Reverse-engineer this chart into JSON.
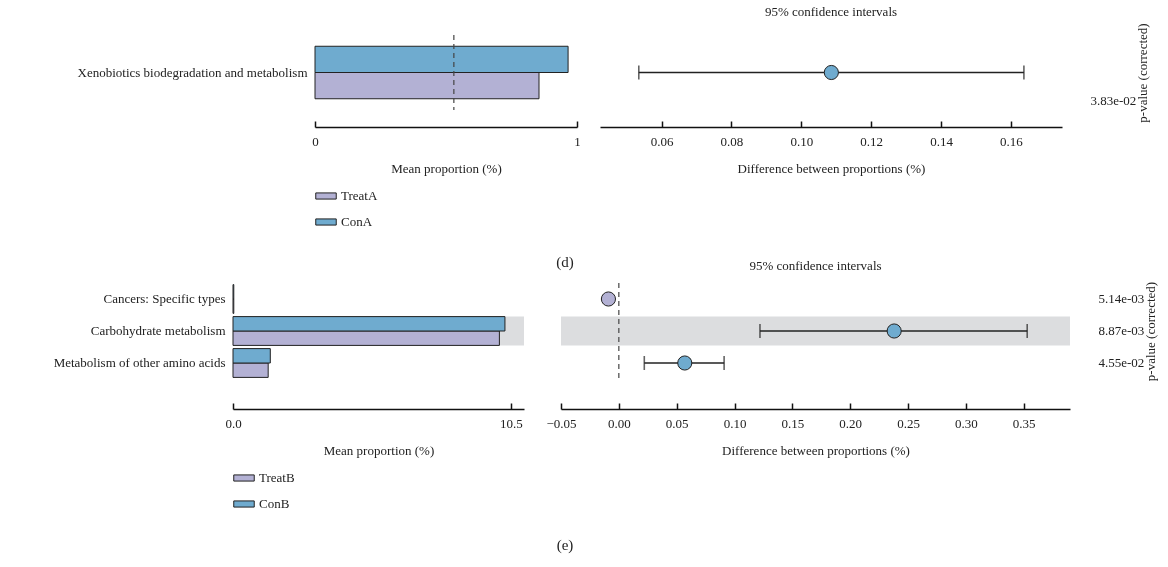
{
  "chart_data": [
    {
      "type": "bar",
      "orientation": "horizontal",
      "categories": [
        "Xenobiotics biodegradation and metabolism"
      ],
      "series": [
        {
          "name": "TreatA",
          "color": "#b3b1d4",
          "values": [
            0.855
          ]
        },
        {
          "name": "ConA",
          "color": "#6fabcf",
          "values": [
            0.966
          ]
        }
      ],
      "xlim": [
        0,
        1
      ],
      "xticks": [
        0,
        1
      ],
      "xlabel": "Mean proportion (%)",
      "legend": "bottom",
      "ref_lines": [
        {
          "axis": "x",
          "value": 0.53,
          "line_style": "dashed"
        }
      ],
      "annotations": [
        "(d)"
      ]
    },
    {
      "type": "scatter",
      "orientation": "horizontal",
      "title": "95% confidence intervals",
      "categories": [
        "3.83e-02"
      ],
      "ylabel": "p-value (corrected)",
      "values": [
        0.1086
      ],
      "errors": [
        [
          0.0535,
          0.1637
        ]
      ],
      "colors": [
        "#6fabcf"
      ],
      "xlim": [
        0.0424,
        0.1746
      ],
      "xticks": [
        0.06,
        0.08,
        {
          "value": 0.1,
          "label": "0.10"
        },
        0.12,
        0.14,
        0.16
      ],
      "xlabel": "Difference between proportions (%)"
    },
    {
      "type": "bar",
      "orientation": "horizontal",
      "categories": [
        "Cancers: Specific types",
        "Carbohydrate metabolism",
        "Metabolism of other amino acids"
      ],
      "series": [
        {
          "name": "TreatB",
          "color": "#b3b1d4",
          "values": [
            0.03,
            10.07,
            1.33
          ]
        },
        {
          "name": "ConB",
          "color": "#6fabcf",
          "values": [
            0.03,
            10.28,
            1.41
          ]
        }
      ],
      "xlim": [
        0,
        11
      ],
      "xticks": [
        {
          "value": 0,
          "label": "0.0"
        },
        10.5
      ],
      "xlabel": "Mean proportion (%)",
      "legend": "bottom",
      "bands": [
        {
          "axis": "y",
          "from": "Carbohydrate metabolism",
          "to": "Carbohydrate metabolism",
          "color": "#dcdddf"
        }
      ],
      "annotations": [
        "(e)"
      ]
    },
    {
      "type": "scatter",
      "orientation": "horizontal",
      "title": "95% confidence intervals",
      "categories": [
        "5.14e-03",
        "8.87e-03",
        "4.55e-02"
      ],
      "ylabel": "p-value (corrected)",
      "values": [
        -0.009,
        0.238,
        0.057
      ],
      "errors": [
        null,
        [
          0.122,
          0.353
        ],
        [
          0.022,
          0.091
        ]
      ],
      "colors": [
        "#b3b1d4",
        "#6fabcf",
        "#6fabcf"
      ],
      "xlim": [
        -0.05,
        0.39
      ],
      "xticks": [
        {
          "value": -0.05,
          "label": "−0.05"
        },
        {
          "value": 0,
          "label": "0.00"
        },
        0.05,
        {
          "value": 0.1,
          "label": "0.10"
        },
        0.15,
        {
          "value": 0.2,
          "label": "0.20"
        },
        0.25,
        {
          "value": 0.3,
          "label": "0.30"
        },
        0.35
      ],
      "xlabel": "Difference between proportions (%)",
      "ref_lines": [
        {
          "axis": "x",
          "value": 0,
          "line_style": "dashed"
        }
      ],
      "bands": [
        {
          "axis": "y",
          "from": "8.87e-03",
          "to": "8.87e-03",
          "color": "#dcdddf"
        }
      ]
    }
  ]
}
